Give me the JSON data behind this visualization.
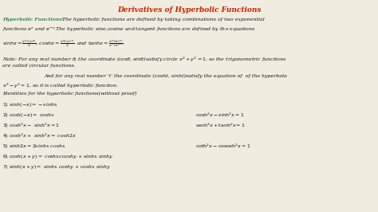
{
  "title": "Derivatives of Hyperbolic Functions",
  "title_color": "#cc2200",
  "bg_color": "#f0ece0",
  "green_color": "#2e8b57",
  "black_color": "#111111",
  "figsize": [
    4.74,
    2.66
  ],
  "dpi": 100,
  "fs_title": 6.5,
  "fs_body": 4.5,
  "fs_eq": 4.3
}
